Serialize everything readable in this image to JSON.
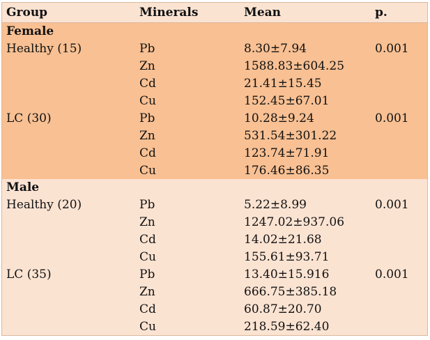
{
  "headers": [
    "Group",
    "Minerals",
    "Mean",
    "p."
  ],
  "sections": [
    {
      "title": "Female",
      "groups": [
        {
          "name": "Healthy (15)",
          "p": "0.001",
          "rows": [
            [
              "Pb",
              "8.30±7.94"
            ],
            [
              "Zn",
              "1588.83±604.25"
            ],
            [
              "Cd",
              "21.41±15.45"
            ],
            [
              "Cu",
              "152.45±67.01"
            ]
          ]
        },
        {
          "name": "LC (30)",
          "p": "0.001",
          "rows": [
            [
              "Pb",
              "10.28±9.24"
            ],
            [
              "Zn",
              "531.54±301.22"
            ],
            [
              "Cd",
              "123.74±71.91"
            ],
            [
              "Cu",
              "176.46±86.35"
            ]
          ]
        }
      ]
    },
    {
      "title": "Male",
      "groups": [
        {
          "name": "Healthy (20)",
          "p": "0.001",
          "rows": [
            [
              "Pb",
              "5.22±8.99"
            ],
            [
              "Zn",
              "1247.02±937.06"
            ],
            [
              "Cd",
              "14.02±21.68"
            ],
            [
              "Cu",
              "155.61±93.71"
            ]
          ]
        },
        {
          "name": "LC (35)",
          "p": "0.001",
          "rows": [
            [
              "Pb",
              "13.40±15.916"
            ],
            [
              "Zn",
              "666.75±385.18"
            ],
            [
              "Cd",
              "60.87±20.70"
            ],
            [
              "Cu",
              "218.59±62.40"
            ]
          ]
        }
      ]
    }
  ]
}
